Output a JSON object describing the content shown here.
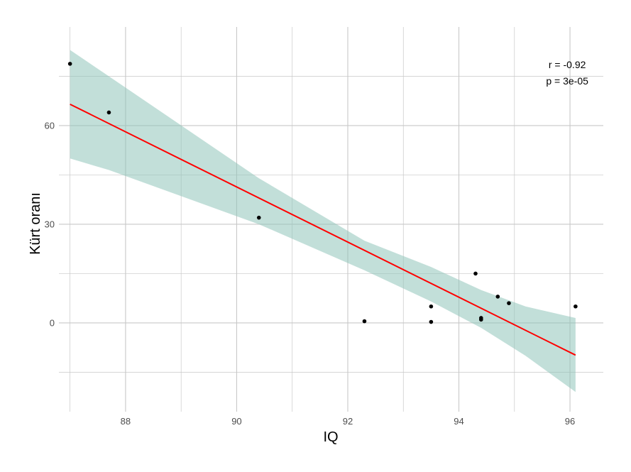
{
  "chart_data": {
    "type": "scatter",
    "xlabel": "IQ",
    "ylabel": "Kürt oranı",
    "xlim": [
      86.8,
      96.6
    ],
    "ylim": [
      -27,
      90
    ],
    "x_ticks": [
      88,
      90,
      92,
      94,
      96
    ],
    "x_tick_labels": [
      "88",
      "90",
      "92",
      "94",
      "96"
    ],
    "x_minor_ticks": [
      87,
      89,
      91,
      93,
      95
    ],
    "y_ticks": [
      0,
      30,
      60
    ],
    "y_tick_labels": [
      "0",
      "30",
      "60"
    ],
    "y_minor_ticks": [
      -15,
      15,
      45,
      75
    ],
    "grid": true,
    "points": [
      {
        "x": 87.0,
        "y": 78.8
      },
      {
        "x": 87.7,
        "y": 64.0
      },
      {
        "x": 90.4,
        "y": 32.0
      },
      {
        "x": 92.3,
        "y": 0.5
      },
      {
        "x": 93.5,
        "y": 5.0
      },
      {
        "x": 93.5,
        "y": 0.3
      },
      {
        "x": 94.3,
        "y": 15.0
      },
      {
        "x": 94.4,
        "y": 1.5
      },
      {
        "x": 94.4,
        "y": 1.0
      },
      {
        "x": 94.7,
        "y": 8.0
      },
      {
        "x": 94.9,
        "y": 6.0
      },
      {
        "x": 96.1,
        "y": 5.0
      }
    ],
    "regression": {
      "x": [
        87.0,
        96.1
      ],
      "y": [
        66.5,
        -9.8
      ],
      "color": "#ff0000"
    },
    "confidence_band": {
      "x": [
        87.0,
        87.7,
        90.4,
        92.3,
        93.5,
        94.4,
        95.2,
        96.1
      ],
      "upper": [
        83.0,
        75.0,
        44.0,
        25.0,
        17.0,
        10.0,
        5.0,
        1.5
      ],
      "lower": [
        50.0,
        46.5,
        30.0,
        16.0,
        6.5,
        -1.5,
        -10.0,
        -21.0
      ],
      "color": "#8fc5ba"
    },
    "annotations": [
      {
        "text": "r = -0.92",
        "x": 95.95,
        "y": 77.5
      },
      {
        "text": "p = 3e-05",
        "x": 95.95,
        "y": 72.5
      }
    ],
    "point_color": "#000000",
    "background": "#ffffff",
    "grid_color": "#c8c8c8"
  }
}
